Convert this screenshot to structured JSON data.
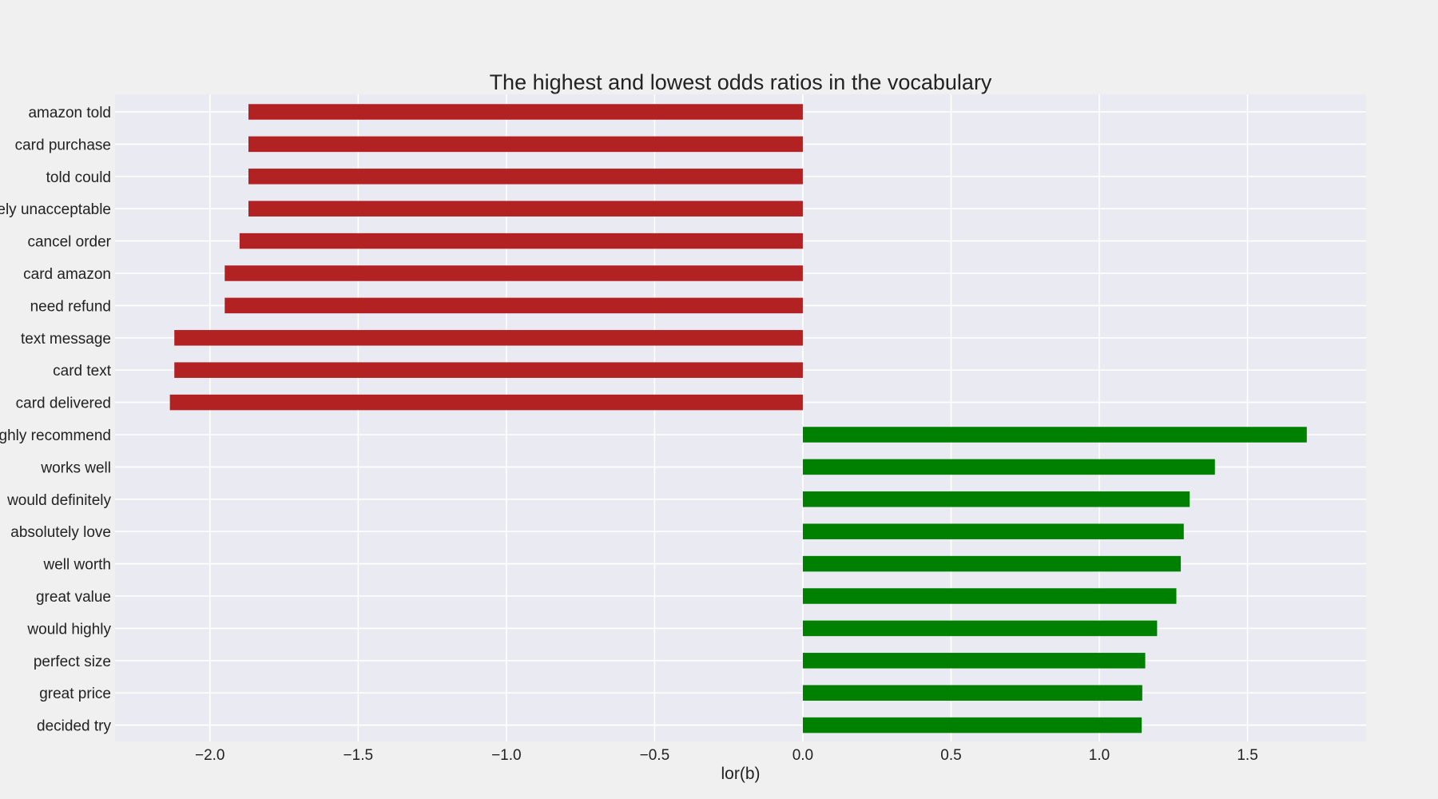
{
  "chart_data": {
    "type": "bar",
    "orientation": "horizontal",
    "title": "The highest and lowest odds ratios in the vocabulary",
    "xlabel": "lor(b)",
    "ylabel": "",
    "xlim": [
      -2.32,
      1.9
    ],
    "grid": true,
    "x_ticks": [
      {
        "value": -2.0,
        "label": "−2.0"
      },
      {
        "value": -1.5,
        "label": "−1.5"
      },
      {
        "value": -1.0,
        "label": "−1.0"
      },
      {
        "value": -0.5,
        "label": "−0.5"
      },
      {
        "value": 0.0,
        "label": "0.0"
      },
      {
        "value": 0.5,
        "label": "0.5"
      },
      {
        "value": 1.0,
        "label": "1.0"
      },
      {
        "value": 1.5,
        "label": "1.5"
      }
    ],
    "categories": [
      "amazon told",
      "card purchase",
      "told could",
      "completely unacceptable",
      "cancel order",
      "card amazon",
      "need refund",
      "text message",
      "card text",
      "card delivered",
      "highly recommend",
      "works well",
      "would definitely",
      "absolutely love",
      "well worth",
      "great value",
      "would highly",
      "perfect size",
      "great price",
      "decided try"
    ],
    "values": [
      -1.87,
      -1.87,
      -1.87,
      -1.87,
      -1.9,
      -1.95,
      -1.95,
      -2.12,
      -2.12,
      -2.135,
      1.7,
      1.39,
      1.305,
      1.285,
      1.275,
      1.26,
      1.195,
      1.155,
      1.145,
      1.143
    ],
    "colors": {
      "negative": "#b22222",
      "positive": "#008000",
      "plot_background": "#eaeaf2",
      "grid": "#ffffff"
    }
  }
}
